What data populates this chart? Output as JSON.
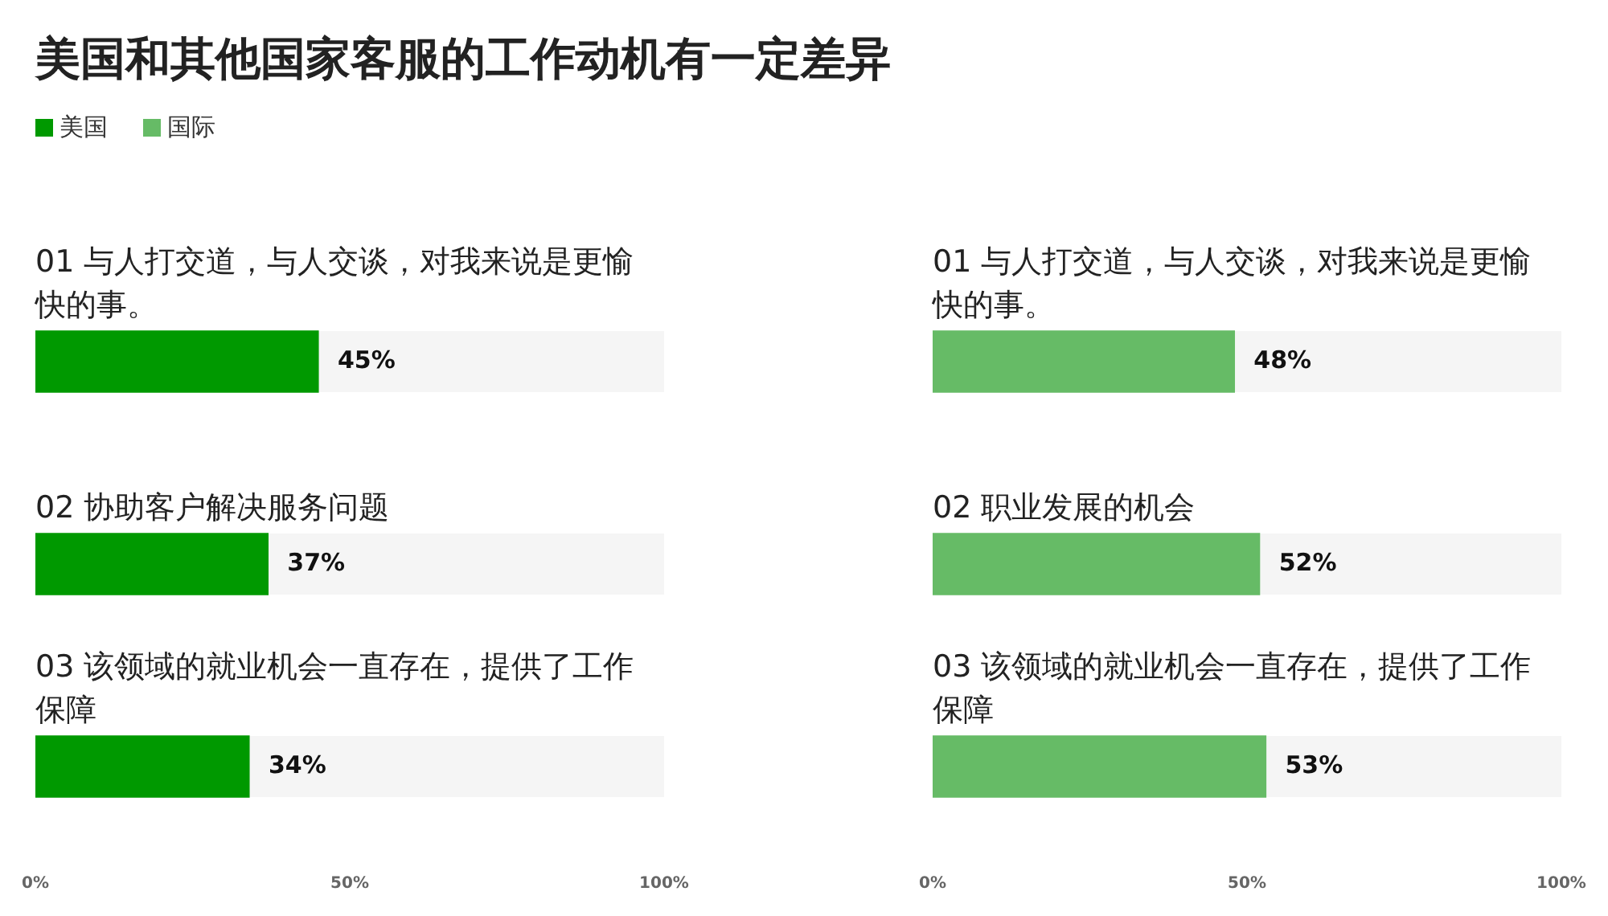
{
  "chart_data": [
    {
      "type": "bar",
      "orientation": "horizontal",
      "title": "美国和其他国家客服的工作动机有一定差异",
      "legend": "top left",
      "categories": [
        "01 与人打交道，与人交谈，对我来说是更愉快的事。",
        "02 协助客户解决服务问题",
        "03 该领域的就业机会一直存在，提供了工作保障"
      ],
      "series": [
        {
          "name": "美国",
          "color": "#009900",
          "values": [
            45,
            37,
            34
          ],
          "value_labels": [
            "45%",
            "37%",
            "34%"
          ]
        }
      ],
      "xlim": [
        0,
        100
      ],
      "xticks": [
        {
          "value": 0,
          "label": "0%"
        },
        {
          "value": 50,
          "label": "50%"
        },
        {
          "value": 100,
          "label": "100%"
        }
      ]
    },
    {
      "type": "bar",
      "orientation": "horizontal",
      "legend": "top left",
      "categories": [
        "01 与人打交道，与人交谈，对我来说是更愉快的事。",
        "02 职业发展的机会",
        "03 该领域的就业机会一直存在，提供了工作保障"
      ],
      "series": [
        {
          "name": "国际",
          "color": "#66bb66",
          "values": [
            48,
            52,
            53
          ],
          "value_labels": [
            "48%",
            "52%",
            "53%"
          ]
        }
      ],
      "xlim": [
        0,
        100
      ],
      "xticks": [
        {
          "value": 0,
          "label": "0%"
        },
        {
          "value": 50,
          "label": "50%"
        },
        {
          "value": 100,
          "label": "100%"
        }
      ]
    }
  ]
}
